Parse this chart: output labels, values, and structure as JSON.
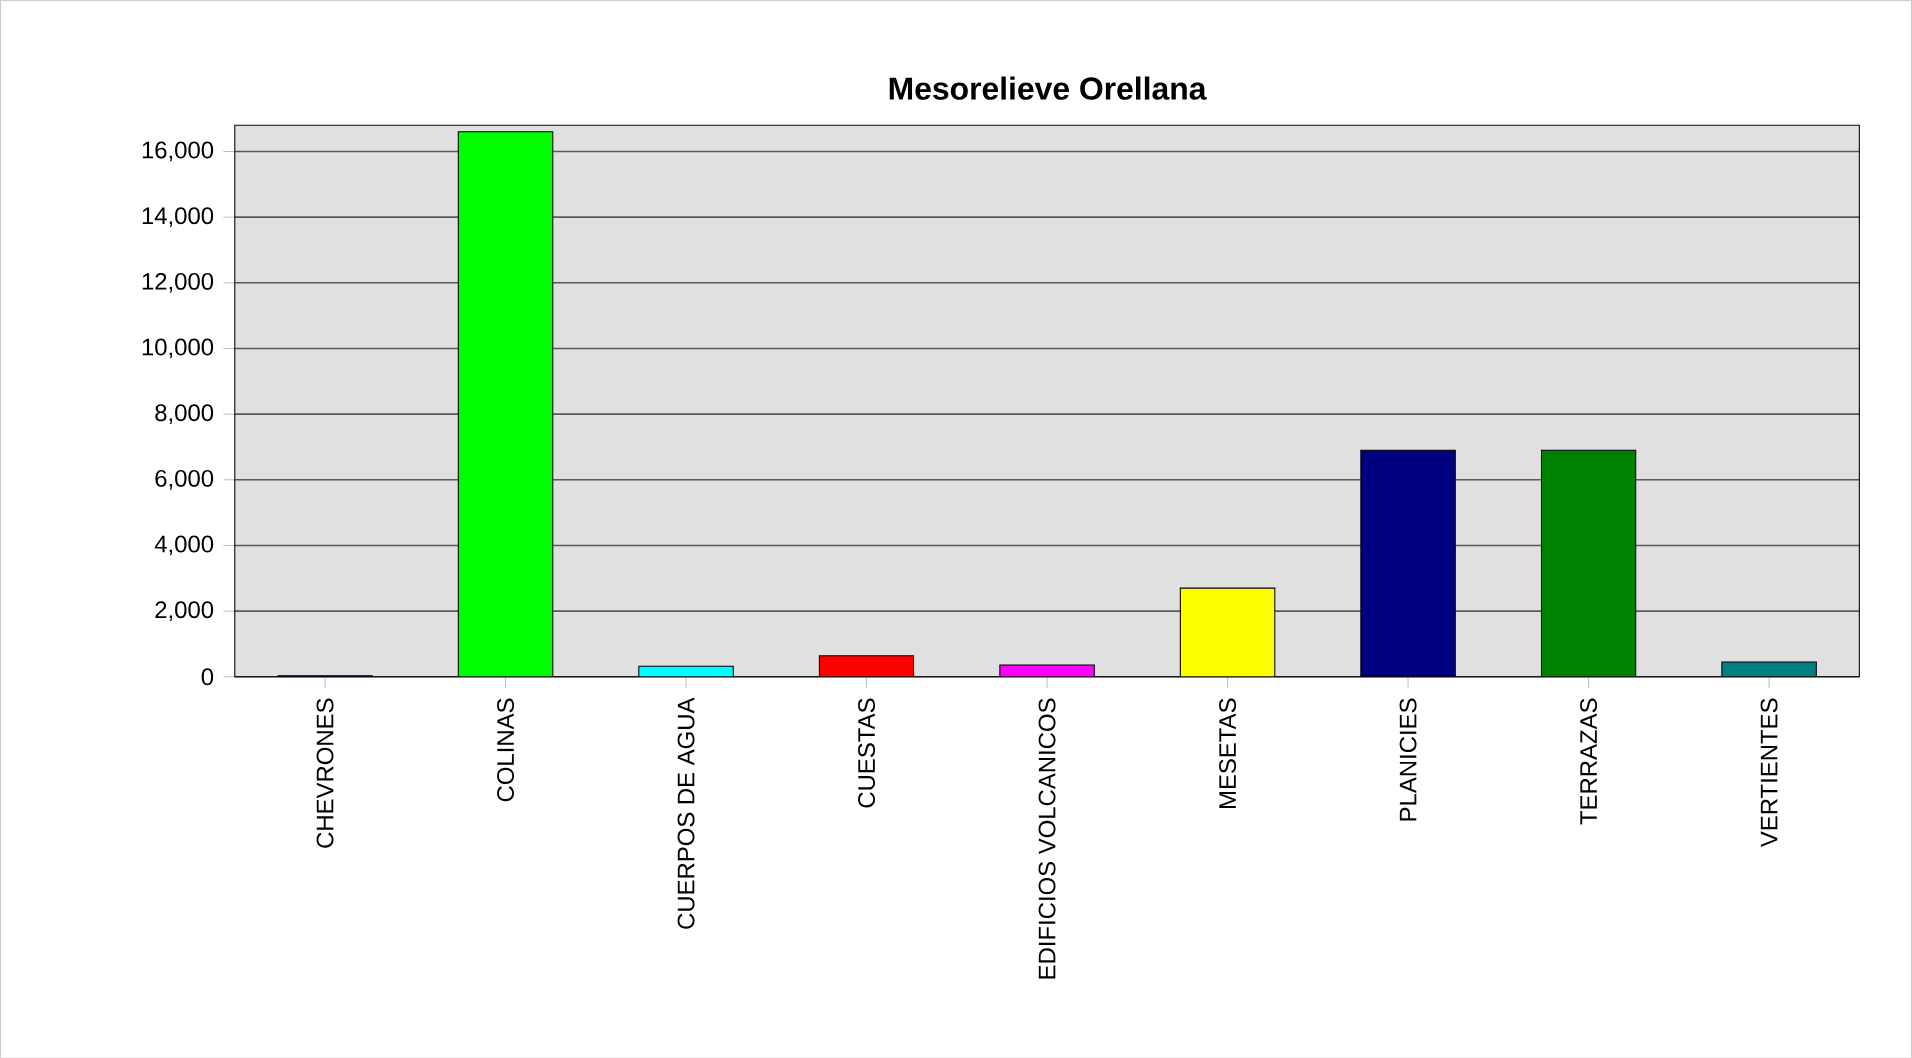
{
  "chart_data": {
    "type": "bar",
    "title": "Mesorelieve Orellana",
    "categories": [
      "CHEVRONES",
      "COLINAS",
      "CUERPOS DE AGUA",
      "CUESTAS",
      "EDIFICIOS VOLCANICOS",
      "MESETAS",
      "PLANICIES",
      "TERRAZAS",
      "VERTIENTES"
    ],
    "values": [
      30,
      16600,
      320,
      640,
      360,
      2700,
      6900,
      6900,
      450
    ],
    "colors": [
      "#0000c0",
      "#00ff00",
      "#00ffff",
      "#ff0000",
      "#ff00ff",
      "#ffff00",
      "#000080",
      "#008000",
      "#008080"
    ],
    "ylim": [
      0,
      16800
    ],
    "yticks": [
      {
        "value": 0,
        "label": "0"
      },
      {
        "value": 2000,
        "label": "2,000"
      },
      {
        "value": 4000,
        "label": "4,000"
      },
      {
        "value": 6000,
        "label": "6,000"
      },
      {
        "value": 8000,
        "label": "8,000"
      },
      {
        "value": 10000,
        "label": "10,000"
      },
      {
        "value": 12000,
        "label": "12,000"
      },
      {
        "value": 14000,
        "label": "14,000"
      },
      {
        "value": 16000,
        "label": "16,000"
      }
    ],
    "grid": "y"
  }
}
